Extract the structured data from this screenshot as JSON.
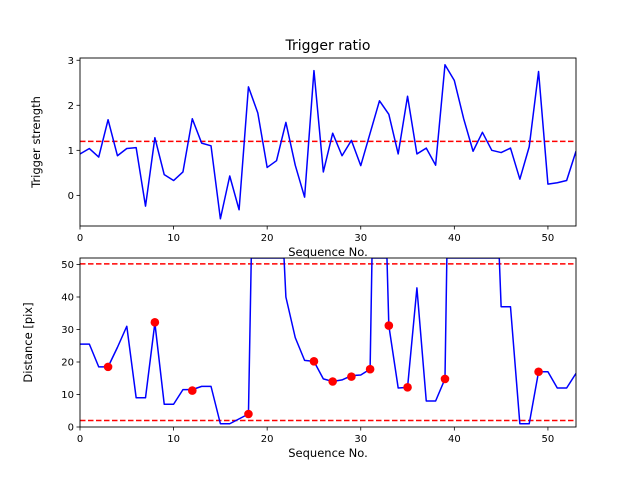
{
  "chart_data": [
    {
      "type": "line",
      "title": "Trigger ratio",
      "xlabel": "Sequence No.",
      "ylabel": "Trigger strength",
      "xlim": [
        0,
        53
      ],
      "ylim": [
        -0.68,
        3.05
      ],
      "xticks": [
        0,
        10,
        20,
        30,
        40,
        50
      ],
      "yticks": [
        0,
        1,
        2,
        3
      ],
      "grid": false,
      "series": [
        {
          "color": "#0000ff",
          "x": [
            0,
            1,
            2,
            3,
            4,
            5,
            6,
            7,
            8,
            9,
            10,
            11,
            12,
            13,
            14,
            15,
            16,
            17,
            18,
            19,
            20,
            21,
            22,
            23,
            24,
            25,
            26,
            27,
            28,
            29,
            30,
            31,
            32,
            33,
            34,
            35,
            36,
            37,
            38,
            39,
            40,
            41,
            42,
            43,
            44,
            45,
            46,
            47,
            48,
            49,
            50,
            51,
            52,
            53
          ],
          "y": [
            0.92,
            1.04,
            0.85,
            1.68,
            0.88,
            1.04,
            1.06,
            -0.24,
            1.28,
            0.46,
            0.33,
            0.52,
            1.7,
            1.16,
            1.1,
            -0.52,
            0.43,
            -0.32,
            2.41,
            1.83,
            0.62,
            0.77,
            1.62,
            0.67,
            -0.04,
            2.77,
            0.52,
            1.38,
            0.88,
            1.22,
            0.66,
            1.38,
            2.1,
            1.8,
            0.92,
            2.2,
            0.92,
            1.05,
            0.67,
            2.9,
            2.55,
            1.7,
            0.98,
            1.4,
            1.0,
            0.95,
            1.05,
            0.36,
            1.08,
            2.75,
            0.25,
            0.28,
            0.33,
            0.98
          ]
        }
      ],
      "hlines": [
        {
          "y": 1.2,
          "color": "#ff0000",
          "style": "dashed"
        }
      ]
    },
    {
      "type": "line",
      "title": "",
      "xlabel": "Sequence No.",
      "ylabel": "Distance [pix]",
      "xlim": [
        0,
        53
      ],
      "ylim": [
        0,
        52
      ],
      "xticks": [
        0,
        10,
        20,
        30,
        40,
        50
      ],
      "yticks": [
        0,
        10,
        20,
        30,
        40,
        50
      ],
      "grid": false,
      "series": [
        {
          "color": "#0000ff",
          "x": [
            0,
            1,
            2,
            3,
            4,
            5,
            6,
            7,
            8,
            9,
            10,
            11,
            12,
            13,
            14,
            15,
            16,
            17,
            18,
            18.3,
            21.8,
            22,
            23,
            24,
            25,
            26,
            27,
            28,
            29,
            30,
            31,
            31.2,
            32.8,
            33,
            34,
            35,
            36,
            37,
            38,
            39,
            39.2,
            44.8,
            45,
            46,
            47,
            48,
            49,
            50,
            51,
            52,
            53
          ],
          "y": [
            25.5,
            25.5,
            18.5,
            18.5,
            24.5,
            31,
            9,
            9,
            32,
            7,
            7,
            11.5,
            11.5,
            12.5,
            12.5,
            1,
            1,
            2.5,
            4,
            52,
            52,
            40,
            27.5,
            20.5,
            20.2,
            14.8,
            14,
            14.5,
            15.8,
            16,
            17.8,
            52,
            52,
            31.2,
            12,
            12.2,
            42.8,
            8,
            8,
            14.8,
            52,
            52,
            37,
            37,
            1,
            1,
            17,
            17,
            12,
            12,
            16.5
          ]
        },
        {
          "color": "#ff0000",
          "marker": "circle",
          "x": [
            3,
            8,
            12,
            18,
            25,
            27,
            29,
            31,
            33,
            35,
            39,
            49
          ],
          "y": [
            18.5,
            32.2,
            11.2,
            4,
            20.2,
            14,
            15.5,
            17.8,
            31.2,
            12.2,
            14.8,
            17
          ]
        }
      ],
      "hlines": [
        {
          "y": 50.2,
          "color": "#ff0000",
          "style": "dashed"
        },
        {
          "y": 2,
          "color": "#ff0000",
          "style": "dashed"
        }
      ]
    }
  ]
}
